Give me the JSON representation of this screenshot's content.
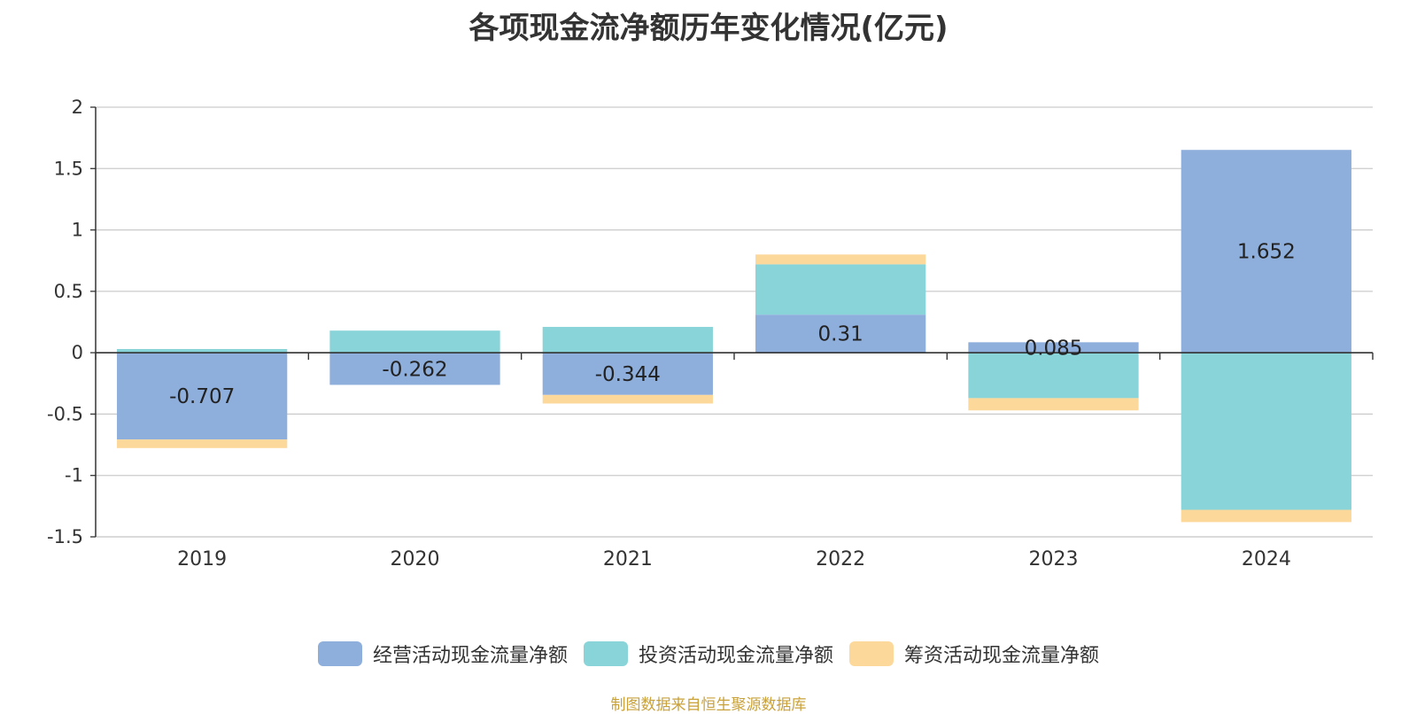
{
  "title": "各项现金流净额历年变化情况(亿元)",
  "source": "制图数据来自恒生聚源数据库",
  "colors": {
    "operating": "#8eaedc",
    "investing": "#88d4d8",
    "financing": "#fdd89b"
  },
  "chart_data": {
    "type": "bar",
    "stacked": true,
    "categories": [
      "2019",
      "2020",
      "2021",
      "2022",
      "2023",
      "2024"
    ],
    "series": [
      {
        "name": "经营活动现金流量净额",
        "values": [
          -0.707,
          -0.262,
          -0.344,
          0.31,
          0.085,
          1.652
        ],
        "labels": [
          "-0.707",
          "-0.262",
          "-0.344",
          "0.31",
          "0.085",
          "1.652"
        ]
      },
      {
        "name": "投资活动现金流量净额",
        "values": [
          0.03,
          0.18,
          0.21,
          0.41,
          -0.37,
          -1.28
        ]
      },
      {
        "name": "筹资活动现金流量净额",
        "values": [
          -0.07,
          0.0,
          -0.07,
          0.08,
          -0.1,
          -0.1
        ]
      }
    ],
    "yticks": [
      "2",
      "1.5",
      "1",
      "0.5",
      "0",
      "-0.5",
      "-1",
      "-1.5"
    ],
    "ylim": [
      -1.5,
      2
    ],
    "grid": true,
    "legend": "bottom"
  }
}
